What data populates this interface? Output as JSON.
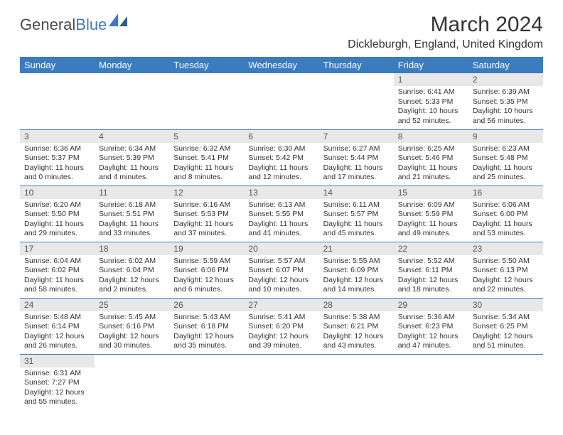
{
  "logo": {
    "t1": "General",
    "t2": "Blue"
  },
  "title": "March 2024",
  "location": "Dickleburgh, England, United Kingdom",
  "colors": {
    "header_bg": "#3b7bbf",
    "header_text": "#ffffff",
    "daynum_bg": "#e8e8e8",
    "row_border": "#3b7bbf",
    "body_text": "#333333",
    "logo_gray": "#4a4a4a",
    "logo_blue": "#3b7bbf"
  },
  "day_headers": [
    "Sunday",
    "Monday",
    "Tuesday",
    "Wednesday",
    "Thursday",
    "Friday",
    "Saturday"
  ],
  "weeks": [
    [
      null,
      null,
      null,
      null,
      null,
      {
        "n": "1",
        "sr": "Sunrise: 6:41 AM",
        "ss": "Sunset: 5:33 PM",
        "d1": "Daylight: 10 hours",
        "d2": "and 52 minutes."
      },
      {
        "n": "2",
        "sr": "Sunrise: 6:39 AM",
        "ss": "Sunset: 5:35 PM",
        "d1": "Daylight: 10 hours",
        "d2": "and 56 minutes."
      }
    ],
    [
      {
        "n": "3",
        "sr": "Sunrise: 6:36 AM",
        "ss": "Sunset: 5:37 PM",
        "d1": "Daylight: 11 hours",
        "d2": "and 0 minutes."
      },
      {
        "n": "4",
        "sr": "Sunrise: 6:34 AM",
        "ss": "Sunset: 5:39 PM",
        "d1": "Daylight: 11 hours",
        "d2": "and 4 minutes."
      },
      {
        "n": "5",
        "sr": "Sunrise: 6:32 AM",
        "ss": "Sunset: 5:41 PM",
        "d1": "Daylight: 11 hours",
        "d2": "and 8 minutes."
      },
      {
        "n": "6",
        "sr": "Sunrise: 6:30 AM",
        "ss": "Sunset: 5:42 PM",
        "d1": "Daylight: 11 hours",
        "d2": "and 12 minutes."
      },
      {
        "n": "7",
        "sr": "Sunrise: 6:27 AM",
        "ss": "Sunset: 5:44 PM",
        "d1": "Daylight: 11 hours",
        "d2": "and 17 minutes."
      },
      {
        "n": "8",
        "sr": "Sunrise: 6:25 AM",
        "ss": "Sunset: 5:46 PM",
        "d1": "Daylight: 11 hours",
        "d2": "and 21 minutes."
      },
      {
        "n": "9",
        "sr": "Sunrise: 6:23 AM",
        "ss": "Sunset: 5:48 PM",
        "d1": "Daylight: 11 hours",
        "d2": "and 25 minutes."
      }
    ],
    [
      {
        "n": "10",
        "sr": "Sunrise: 6:20 AM",
        "ss": "Sunset: 5:50 PM",
        "d1": "Daylight: 11 hours",
        "d2": "and 29 minutes."
      },
      {
        "n": "11",
        "sr": "Sunrise: 6:18 AM",
        "ss": "Sunset: 5:51 PM",
        "d1": "Daylight: 11 hours",
        "d2": "and 33 minutes."
      },
      {
        "n": "12",
        "sr": "Sunrise: 6:16 AM",
        "ss": "Sunset: 5:53 PM",
        "d1": "Daylight: 11 hours",
        "d2": "and 37 minutes."
      },
      {
        "n": "13",
        "sr": "Sunrise: 6:13 AM",
        "ss": "Sunset: 5:55 PM",
        "d1": "Daylight: 11 hours",
        "d2": "and 41 minutes."
      },
      {
        "n": "14",
        "sr": "Sunrise: 6:11 AM",
        "ss": "Sunset: 5:57 PM",
        "d1": "Daylight: 11 hours",
        "d2": "and 45 minutes."
      },
      {
        "n": "15",
        "sr": "Sunrise: 6:09 AM",
        "ss": "Sunset: 5:59 PM",
        "d1": "Daylight: 11 hours",
        "d2": "and 49 minutes."
      },
      {
        "n": "16",
        "sr": "Sunrise: 6:06 AM",
        "ss": "Sunset: 6:00 PM",
        "d1": "Daylight: 11 hours",
        "d2": "and 53 minutes."
      }
    ],
    [
      {
        "n": "17",
        "sr": "Sunrise: 6:04 AM",
        "ss": "Sunset: 6:02 PM",
        "d1": "Daylight: 11 hours",
        "d2": "and 58 minutes."
      },
      {
        "n": "18",
        "sr": "Sunrise: 6:02 AM",
        "ss": "Sunset: 6:04 PM",
        "d1": "Daylight: 12 hours",
        "d2": "and 2 minutes."
      },
      {
        "n": "19",
        "sr": "Sunrise: 5:59 AM",
        "ss": "Sunset: 6:06 PM",
        "d1": "Daylight: 12 hours",
        "d2": "and 6 minutes."
      },
      {
        "n": "20",
        "sr": "Sunrise: 5:57 AM",
        "ss": "Sunset: 6:07 PM",
        "d1": "Daylight: 12 hours",
        "d2": "and 10 minutes."
      },
      {
        "n": "21",
        "sr": "Sunrise: 5:55 AM",
        "ss": "Sunset: 6:09 PM",
        "d1": "Daylight: 12 hours",
        "d2": "and 14 minutes."
      },
      {
        "n": "22",
        "sr": "Sunrise: 5:52 AM",
        "ss": "Sunset: 6:11 PM",
        "d1": "Daylight: 12 hours",
        "d2": "and 18 minutes."
      },
      {
        "n": "23",
        "sr": "Sunrise: 5:50 AM",
        "ss": "Sunset: 6:13 PM",
        "d1": "Daylight: 12 hours",
        "d2": "and 22 minutes."
      }
    ],
    [
      {
        "n": "24",
        "sr": "Sunrise: 5:48 AM",
        "ss": "Sunset: 6:14 PM",
        "d1": "Daylight: 12 hours",
        "d2": "and 26 minutes."
      },
      {
        "n": "25",
        "sr": "Sunrise: 5:45 AM",
        "ss": "Sunset: 6:16 PM",
        "d1": "Daylight: 12 hours",
        "d2": "and 30 minutes."
      },
      {
        "n": "26",
        "sr": "Sunrise: 5:43 AM",
        "ss": "Sunset: 6:18 PM",
        "d1": "Daylight: 12 hours",
        "d2": "and 35 minutes."
      },
      {
        "n": "27",
        "sr": "Sunrise: 5:41 AM",
        "ss": "Sunset: 6:20 PM",
        "d1": "Daylight: 12 hours",
        "d2": "and 39 minutes."
      },
      {
        "n": "28",
        "sr": "Sunrise: 5:38 AM",
        "ss": "Sunset: 6:21 PM",
        "d1": "Daylight: 12 hours",
        "d2": "and 43 minutes."
      },
      {
        "n": "29",
        "sr": "Sunrise: 5:36 AM",
        "ss": "Sunset: 6:23 PM",
        "d1": "Daylight: 12 hours",
        "d2": "and 47 minutes."
      },
      {
        "n": "30",
        "sr": "Sunrise: 5:34 AM",
        "ss": "Sunset: 6:25 PM",
        "d1": "Daylight: 12 hours",
        "d2": "and 51 minutes."
      }
    ],
    [
      {
        "n": "31",
        "sr": "Sunrise: 6:31 AM",
        "ss": "Sunset: 7:27 PM",
        "d1": "Daylight: 12 hours",
        "d2": "and 55 minutes."
      },
      null,
      null,
      null,
      null,
      null,
      null
    ]
  ]
}
